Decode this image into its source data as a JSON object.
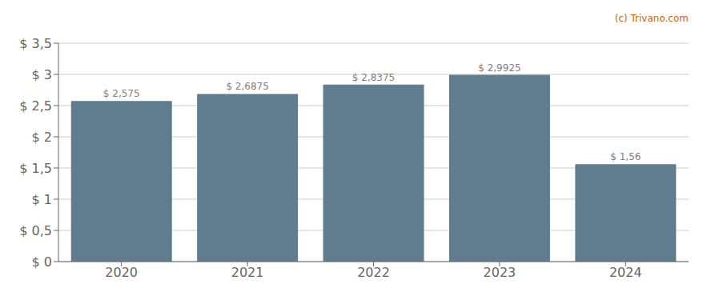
{
  "chart_data": {
    "type": "bar",
    "categories": [
      "2020",
      "2021",
      "2022",
      "2023",
      "2024"
    ],
    "values": [
      2.575,
      2.6875,
      2.8375,
      2.9925,
      1.56
    ],
    "value_labels": [
      "$ 2,575",
      "$ 2,6875",
      "$ 2,8375",
      "$ 2,9925",
      "$ 1,56"
    ],
    "data_labels": true,
    "color": "#5f7d8e",
    "ylim": [
      0,
      3.5
    ],
    "yticks": [
      {
        "value": 0,
        "label": "$ 0"
      },
      {
        "value": 0.5,
        "label": "$ 0,5"
      },
      {
        "value": 1.0,
        "label": "$ 1"
      },
      {
        "value": 1.5,
        "label": "$ 1,5"
      },
      {
        "value": 2.0,
        "label": "$ 2"
      },
      {
        "value": 2.5,
        "label": "$ 2,5"
      },
      {
        "value": 3.0,
        "label": "$ 3"
      },
      {
        "value": 3.5,
        "label": "$ 3,5"
      }
    ],
    "grid": true,
    "annotations": [
      {
        "text": "(c) Trivano.com",
        "color": "#cc6600"
      }
    ]
  }
}
